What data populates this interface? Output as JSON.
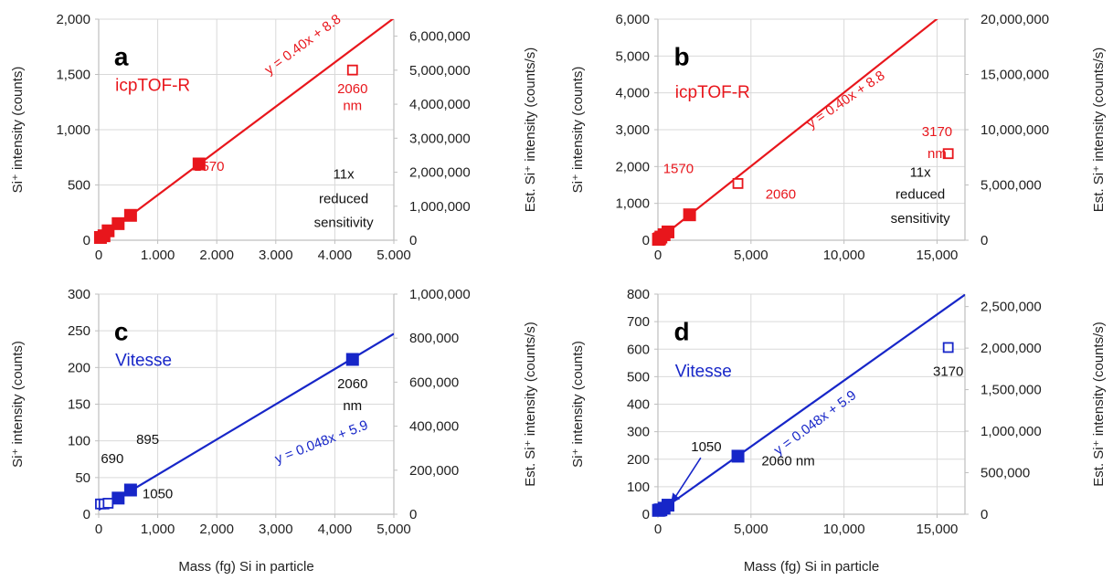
{
  "colors": {
    "red": "#e8161c",
    "blue": "#1726c8",
    "grid": "#d9d9d9",
    "axis": "#bfbfbf"
  },
  "chart_data": [
    {
      "panel": "a",
      "type": "scatter",
      "instrument": "icpTOF-R",
      "color": "#e8161c",
      "xlim": [
        0,
        5000
      ],
      "ylim": [
        0,
        2000
      ],
      "x_ticks": [
        "0",
        "1.000",
        "2.000",
        "3.000",
        "4.000",
        "5.000"
      ],
      "y_ticks": [
        "0",
        "500",
        "1,000",
        "1,500",
        "2,000"
      ],
      "y2_ticks": [
        "0",
        "1,000,000",
        "2,000,000",
        "3,000,000",
        "4,000,000",
        "5,000,000",
        "6,000,000"
      ],
      "y2_max": 6500000,
      "ylabel": "Si⁺ intensity (counts)",
      "y2label": "Est. Si⁺ intensity (counts/s)",
      "xlabel": "",
      "fit": {
        "slope": 0.4,
        "intercept": 8.8,
        "label": "y = 0.40x + 8.8"
      },
      "points_filled": [
        [
          30,
          25
        ],
        [
          90,
          40
        ],
        [
          160,
          85
        ],
        [
          330,
          150
        ],
        [
          540,
          225
        ],
        [
          1700,
          690
        ]
      ],
      "points_open": [
        [
          4300,
          1540
        ]
      ],
      "annotations": [
        {
          "text": "1570",
          "x": 1870,
          "y": 670
        },
        {
          "text": "2060",
          "x": 4300,
          "y": 1370
        },
        {
          "text": "nm",
          "x": 4300,
          "y": 1220
        },
        {
          "text": "11x",
          "x": 4150,
          "y": 600
        },
        {
          "text": "reduced",
          "x": 4150,
          "y": 375
        },
        {
          "text": "sensitivity",
          "x": 4150,
          "y": 160
        }
      ]
    },
    {
      "panel": "b",
      "type": "scatter",
      "instrument": "icpTOF-R",
      "color": "#e8161c",
      "xlim": [
        0,
        16500
      ],
      "ylim": [
        0,
        6000
      ],
      "x_ticks_vals": [
        0,
        5000,
        10000,
        15000
      ],
      "x_ticks": [
        "0",
        "5,000",
        "10,000",
        "15,000"
      ],
      "y_ticks": [
        "0",
        "1,000",
        "2,000",
        "3,000",
        "4,000",
        "5,000",
        "6,000"
      ],
      "y2_ticks": [
        "0",
        "5,000,000",
        "10,000,000",
        "15,000,000",
        "20,000,000"
      ],
      "y2_max": 20000000,
      "ylabel": "Si⁺ intensity (counts)",
      "y2label": "Est. Si⁺ intensity (counts/s)",
      "xlabel": "",
      "fit": {
        "slope": 0.4,
        "intercept": 8.8,
        "label": "y = 0.40x + 8.8"
      },
      "points_filled": [
        [
          30,
          25
        ],
        [
          90,
          40
        ],
        [
          160,
          85
        ],
        [
          330,
          150
        ],
        [
          540,
          225
        ],
        [
          1700,
          690
        ]
      ],
      "points_open": [
        [
          4300,
          1540
        ],
        [
          15600,
          2350
        ]
      ],
      "annotations": [
        {
          "text": "1570",
          "x": 1100,
          "y": 1950
        },
        {
          "text": "2060",
          "x": 6600,
          "y": 1250
        },
        {
          "text": "3170",
          "x": 15000,
          "y": 2950
        },
        {
          "text": "nm",
          "x": 15000,
          "y": 2350
        },
        {
          "text": "11x",
          "x": 14100,
          "y": 1850
        },
        {
          "text": "reduced",
          "x": 14100,
          "y": 1250
        },
        {
          "text": "sensitivity",
          "x": 14100,
          "y": 600
        }
      ]
    },
    {
      "panel": "c",
      "type": "scatter",
      "instrument": "Vitesse",
      "color": "#1726c8",
      "xlim": [
        0,
        5000
      ],
      "ylim": [
        0,
        300
      ],
      "x_ticks": [
        "0",
        "1,000",
        "2,000",
        "3,000",
        "4,000",
        "5,000"
      ],
      "y_ticks": [
        "0",
        "50",
        "100",
        "150",
        "200",
        "250",
        "300"
      ],
      "y2_ticks": [
        "0",
        "200,000",
        "400,000",
        "600,000",
        "800,000",
        "1,000,000"
      ],
      "y2_max": 1000000,
      "ylabel": "Si⁺ intensity (counts)",
      "y2label": "Est. Si⁺ intensity (counts/s)",
      "xlabel": "Mass (fg) Si in particle",
      "fit": {
        "slope": 0.048,
        "intercept": 5.9,
        "label": "y = 0.048x + 5.9"
      },
      "points_filled": [
        [
          330,
          22
        ],
        [
          540,
          33
        ],
        [
          4300,
          211
        ]
      ],
      "points_open": [
        [
          30,
          14
        ],
        [
          90,
          14
        ],
        [
          160,
          15
        ]
      ],
      "annotations": [
        {
          "text": "2060",
          "x": 4300,
          "y": 178
        },
        {
          "text": "nm",
          "x": 4300,
          "y": 148
        },
        {
          "text": "895",
          "x": 830,
          "y": 102
        },
        {
          "text": "690",
          "x": 230,
          "y": 76
        },
        {
          "text": "1050",
          "x": 1000,
          "y": 28
        }
      ]
    },
    {
      "panel": "d",
      "type": "scatter",
      "instrument": "Vitesse",
      "color": "#1726c8",
      "xlim": [
        0,
        16500
      ],
      "ylim": [
        0,
        800
      ],
      "x_ticks_vals": [
        0,
        5000,
        10000,
        15000
      ],
      "x_ticks": [
        "0",
        "5,000",
        "10,000",
        "15,000"
      ],
      "y_ticks": [
        "0",
        "100",
        "200",
        "300",
        "400",
        "500",
        "600",
        "700",
        "800"
      ],
      "y2_ticks": [
        "0",
        "500,000",
        "1,000,000",
        "1,500,000",
        "2,000,000",
        "2,500,000"
      ],
      "y2_max": 2650000,
      "ylabel": "Si⁺ intensity (counts)",
      "y2label": "Est. Si⁺ intensity (counts/s)",
      "xlabel": "Mass (fg) Si in particle",
      "fit": {
        "slope": 0.048,
        "intercept": 5.9,
        "label": "y = 0.048x + 5.9"
      },
      "points_filled": [
        [
          30,
          14
        ],
        [
          90,
          15
        ],
        [
          160,
          16
        ],
        [
          330,
          22
        ],
        [
          540,
          33
        ],
        [
          4300,
          211
        ]
      ],
      "points_open": [
        [
          15600,
          606
        ]
      ],
      "annotations": [
        {
          "text": "2060 nm",
          "x": 7000,
          "y": 195
        },
        {
          "text": "3170",
          "x": 15600,
          "y": 520
        },
        {
          "text": "1050",
          "x": 2600,
          "y": 245
        }
      ]
    }
  ]
}
